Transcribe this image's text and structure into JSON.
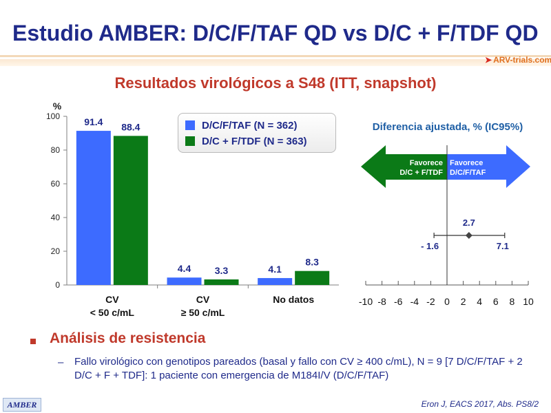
{
  "slide": {
    "title": "Estudio AMBER: D/C/F/TAF QD vs D/C + F/TDF QD",
    "logo_text": "ARV-trials.com",
    "subtitle": "Resultados virológicos a S48 (ITT, snapshot)",
    "footer_badge": "AMBER",
    "citation": "Eron J, EACS 2017, Abs. PS8/2",
    "bullet_heading": "Análisis de resistencia",
    "bullet_dash": "–",
    "bullet_text": "Fallo virológico con genotipos pareados (basal y fallo con CV  ≥ 400 c/mL), N = 9 [7 D/C/F/TAF + 2 D/C + F + TDF]: 1 paciente con emergencia de M184I/V (D/C/F/TAF)"
  },
  "colors": {
    "series1": "#3d6bff",
    "series2": "#0b7a17",
    "title": "#1f2a8a",
    "accent": "#c0392b"
  },
  "chart_data": [
    {
      "type": "bar",
      "ylabel": "%",
      "ylim": [
        0,
        100
      ],
      "yticks": [
        0,
        20,
        40,
        60,
        80,
        100
      ],
      "categories": [
        [
          "CV",
          "< 50 c/mL"
        ],
        [
          "CV",
          "≥ 50 c/mL"
        ],
        [
          "No datos"
        ]
      ],
      "series": [
        {
          "name": "D/C/F/TAF (N = 362)",
          "values": [
            91.4,
            4.4,
            4.1
          ],
          "labels": [
            "91.4",
            "4.4",
            "4.1"
          ]
        },
        {
          "name": "D/C + F/TDF (N = 363)",
          "values": [
            88.4,
            3.3,
            8.3
          ],
          "labels": [
            "88.4",
            "3.3",
            "8.3"
          ]
        }
      ],
      "legend_position": "top-right"
    },
    {
      "type": "scatter",
      "title": "Diferencia ajustada, % (IC95%)",
      "xlim": [
        -10,
        10
      ],
      "xticks": [
        "-10",
        "-8",
        "-6",
        "-4",
        "-2",
        "0",
        "2",
        "4",
        "6",
        "8",
        "10"
      ],
      "estimate": 2.7,
      "ci": [
        -1.6,
        7.1
      ],
      "estimate_label": "2.7",
      "ci_labels": [
        "- 1.6",
        "7.1"
      ],
      "left_arrow": [
        "Favorece",
        "D/C + F/TDF"
      ],
      "right_arrow": [
        "Favorece",
        "D/C/F/TAF"
      ]
    }
  ]
}
